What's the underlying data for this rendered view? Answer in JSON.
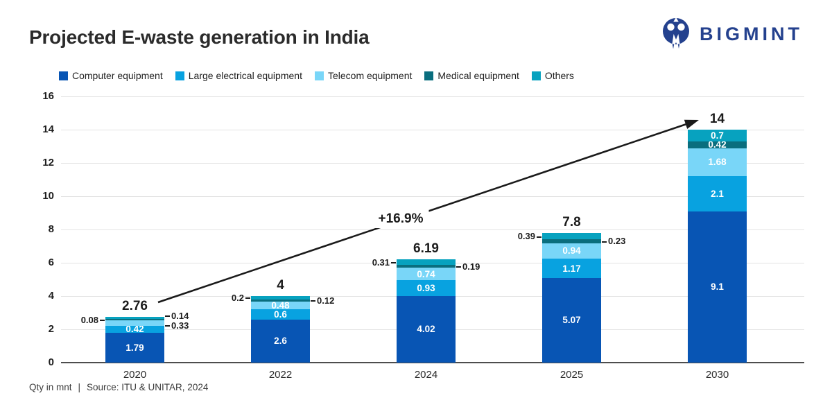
{
  "header": {
    "title": "Projected E-waste generation in India",
    "brand": "BIGMINT"
  },
  "footer": {
    "unit_note": "Qty in mnt",
    "separator": "|",
    "source": "Source: ITU & UNITAR, 2024"
  },
  "chart_data": {
    "type": "bar",
    "stacked": true,
    "title": "Projected E-waste generation in India",
    "xlabel": "",
    "ylabel": "Qty in mnt",
    "legend_position": "top",
    "grid": true,
    "ylim": [
      0,
      16
    ],
    "y_ticks": [
      0,
      2,
      4,
      6,
      8,
      10,
      12,
      14,
      16
    ],
    "categories": [
      "2020",
      "2022",
      "2024",
      "2025",
      "2030"
    ],
    "series": [
      {
        "name": "Computer equipment",
        "color": "#0855b4",
        "values": [
          1.79,
          2.6,
          4.02,
          5.07,
          9.1
        ]
      },
      {
        "name": "Large electrical equipment",
        "color": "#08a2e0",
        "values": [
          0.42,
          0.6,
          0.93,
          1.17,
          2.1
        ]
      },
      {
        "name": "Telecom equipment",
        "color": "#79d6f8",
        "values": [
          0.33,
          0.48,
          0.74,
          0.94,
          1.68
        ]
      },
      {
        "name": "Medical equipment",
        "color": "#0a6e7e",
        "values": [
          0.08,
          0.12,
          0.19,
          0.23,
          0.42
        ]
      },
      {
        "name": "Others",
        "color": "#07a2bf",
        "values": [
          0.14,
          0.2,
          0.31,
          0.39,
          0.7
        ]
      }
    ],
    "totals": [
      "2.76",
      "4",
      "6.19",
      "7.8",
      "14"
    ],
    "value_label_pos": [
      [
        "in",
        "in",
        "right",
        "left",
        "right"
      ],
      [
        "in",
        "in",
        "in",
        "right",
        "left"
      ],
      [
        "in",
        "in",
        "in",
        "right",
        "left"
      ],
      [
        "in",
        "in",
        "in",
        "right",
        "left"
      ],
      [
        "in",
        "in",
        "in",
        "in",
        "in"
      ]
    ],
    "annotation": {
      "label": "+16.9%",
      "from_category": "2020",
      "to_category": "2030"
    }
  }
}
